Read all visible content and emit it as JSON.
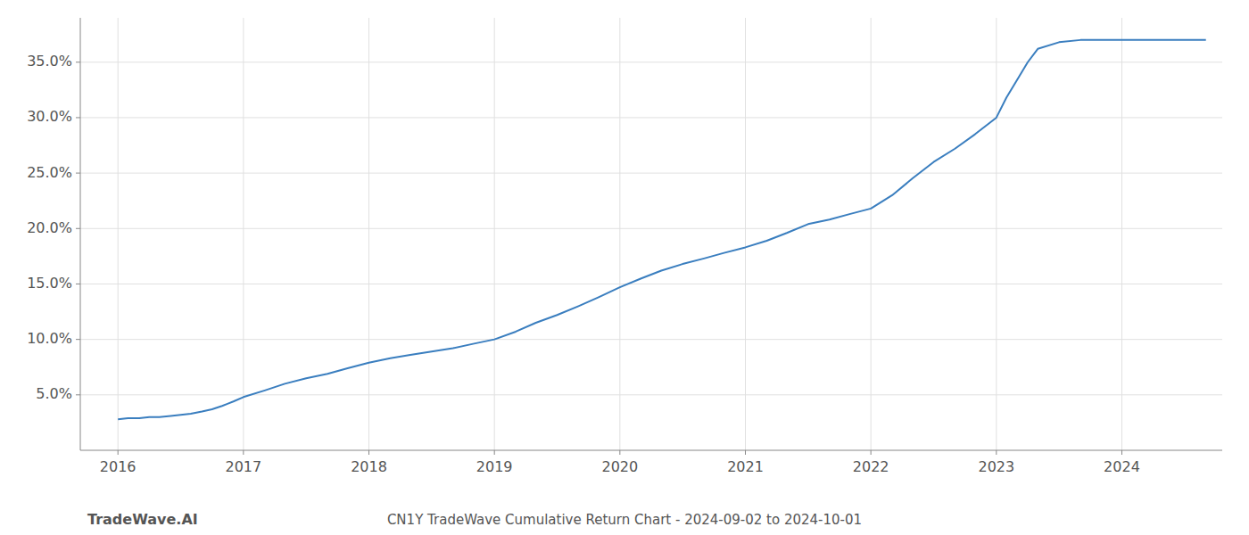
{
  "chart_data": {
    "type": "line",
    "title": "CN1Y TradeWave Cumulative Return Chart - 2024-09-02 to 2024-10-01",
    "annotations": [
      "TradeWave.AI"
    ],
    "color": "#3a7ebf",
    "grid": true,
    "x": [
      2016.0,
      2016.08,
      2016.17,
      2016.25,
      2016.33,
      2016.42,
      2016.5,
      2016.58,
      2016.67,
      2016.75,
      2016.83,
      2016.92,
      2017.0,
      2017.17,
      2017.33,
      2017.5,
      2017.67,
      2017.83,
      2018.0,
      2018.17,
      2018.33,
      2018.5,
      2018.67,
      2018.83,
      2019.0,
      2019.17,
      2019.33,
      2019.5,
      2019.67,
      2019.83,
      2020.0,
      2020.17,
      2020.33,
      2020.5,
      2020.67,
      2020.83,
      2021.0,
      2021.17,
      2021.33,
      2021.5,
      2021.67,
      2021.83,
      2022.0,
      2022.17,
      2022.33,
      2022.5,
      2022.67,
      2022.83,
      2023.0,
      2023.08,
      2023.17,
      2023.25,
      2023.33,
      2023.5,
      2023.67,
      2023.83,
      2024.0,
      2024.25,
      2024.5,
      2024.67
    ],
    "values": [
      0.028,
      0.029,
      0.029,
      0.03,
      0.03,
      0.031,
      0.032,
      0.033,
      0.035,
      0.037,
      0.04,
      0.044,
      0.048,
      0.054,
      0.06,
      0.065,
      0.069,
      0.074,
      0.079,
      0.083,
      0.086,
      0.089,
      0.092,
      0.096,
      0.1,
      0.107,
      0.115,
      0.122,
      0.13,
      0.138,
      0.147,
      0.155,
      0.162,
      0.168,
      0.173,
      0.178,
      0.183,
      0.189,
      0.196,
      0.204,
      0.208,
      0.213,
      0.218,
      0.23,
      0.245,
      0.26,
      0.272,
      0.285,
      0.3,
      0.318,
      0.335,
      0.35,
      0.362,
      0.368,
      0.37,
      0.37,
      0.37,
      0.37,
      0.37,
      0.37
    ],
    "xlim": [
      2015.7,
      2024.8
    ],
    "ylim": [
      0.0,
      0.39
    ],
    "xticks": [
      2016,
      2017,
      2018,
      2019,
      2020,
      2021,
      2022,
      2023,
      2024
    ],
    "yticks": [
      {
        "value": 0.05,
        "label": "5.0%"
      },
      {
        "value": 0.1,
        "label": "10.0%"
      },
      {
        "value": 0.15,
        "label": "15.0%"
      },
      {
        "value": 0.2,
        "label": "20.0%"
      },
      {
        "value": 0.25,
        "label": "25.0%"
      },
      {
        "value": 0.3,
        "label": "30.0%"
      },
      {
        "value": 0.35,
        "label": "35.0%"
      }
    ]
  }
}
